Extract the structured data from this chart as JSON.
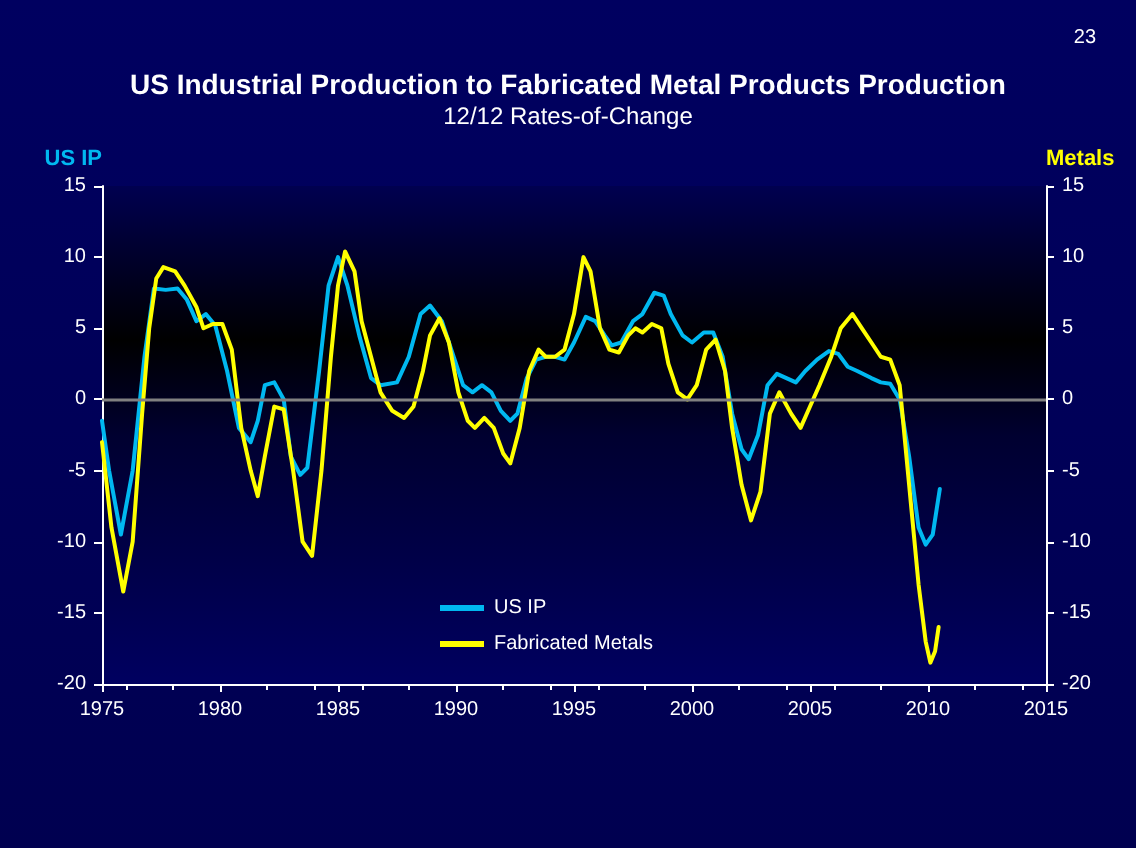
{
  "chart_data": {
    "type": "line",
    "title": "US Industrial Production to Fabricated Metal Products Production",
    "subtitle": "12/12 Rates-of-Change",
    "ylabel": "US IP",
    "y2label": "Metals",
    "annotations": [
      "23"
    ],
    "xlim": [
      1975,
      2015
    ],
    "xticks": [
      1975,
      1980,
      1985,
      1990,
      1995,
      2000,
      2005,
      2010,
      2015
    ],
    "ylim": [
      -20,
      15
    ],
    "yticks": [
      -20,
      -15,
      -10,
      -5,
      0,
      5,
      10,
      15
    ],
    "y2lim": [
      -20,
      15
    ],
    "y2ticks": [
      -20,
      -15,
      -10,
      -5,
      0,
      5,
      10,
      15
    ],
    "grid": false,
    "legend": "bottom",
    "marker": "none",
    "line_style": "solid",
    "ref_lines": [
      {
        "axis": "y",
        "value": 0,
        "color": "#808080"
      }
    ],
    "series": [
      {
        "name": "US IP",
        "color": "#00b8f0",
        "x": [
          1975.0,
          1975.3,
          1975.8,
          1976.3,
          1976.8,
          1977.2,
          1977.7,
          1978.2,
          1978.6,
          1979.0,
          1979.4,
          1979.8,
          1980.3,
          1980.8,
          1981.3,
          1981.6,
          1981.9,
          1982.3,
          1982.7,
          1983.0,
          1983.4,
          1983.7,
          1984.2,
          1984.6,
          1985.0,
          1985.4,
          1985.9,
          1986.4,
          1986.8,
          1987.5,
          1988.0,
          1988.5,
          1988.9,
          1989.4,
          1989.9,
          1990.3,
          1990.7,
          1991.1,
          1991.5,
          1991.9,
          1992.3,
          1992.6,
          1993.0,
          1993.4,
          1993.8,
          1994.2,
          1994.6,
          1995.0,
          1995.5,
          1995.9,
          1996.3,
          1996.6,
          1997.0,
          1997.5,
          1997.9,
          1998.4,
          1998.8,
          1999.1,
          1999.6,
          2000.0,
          2000.5,
          2000.9,
          2001.3,
          2001.7,
          2002.1,
          2002.4,
          2002.8,
          2003.2,
          2003.6,
          2004.0,
          2004.4,
          2004.8,
          2005.3,
          2005.8,
          2006.2,
          2006.6,
          2007.0,
          2007.6,
          2008.0,
          2008.4,
          2008.8,
          2009.2,
          2009.6,
          2009.9,
          2010.2,
          2010.5
        ],
        "values": [
          -1.5,
          -5,
          -9.5,
          -5,
          3,
          7.8,
          7.7,
          7.8,
          7,
          5.5,
          6,
          5.2,
          2,
          -2,
          -3,
          -1.5,
          1,
          1.2,
          0,
          -4,
          -5.3,
          -4.8,
          2,
          8,
          10,
          8,
          4.5,
          1.5,
          1,
          1.2,
          3,
          6,
          6.6,
          5.5,
          3,
          1,
          0.5,
          1,
          0.5,
          -0.8,
          -1.5,
          -1,
          1.5,
          2.8,
          3,
          3,
          2.8,
          4,
          5.8,
          5.5,
          4.5,
          3.8,
          4,
          5.5,
          6,
          7.5,
          7.3,
          6,
          4.5,
          4,
          4.7,
          4.7,
          3,
          -1,
          -3.5,
          -4.2,
          -2.5,
          1,
          1.8,
          1.5,
          1.2,
          2,
          2.8,
          3.4,
          3.2,
          2.3,
          2,
          1.5,
          1.2,
          1.1,
          0,
          -4,
          -9,
          -10.2,
          -9.5,
          -6.3
        ]
      },
      {
        "name": "Fabricated Metals",
        "color": "#ffff00",
        "axis": "y2",
        "x": [
          1975.0,
          1975.4,
          1975.9,
          1976.3,
          1976.7,
          1977.0,
          1977.3,
          1977.6,
          1978.1,
          1978.5,
          1979.0,
          1979.3,
          1979.7,
          1980.1,
          1980.5,
          1980.9,
          1981.3,
          1981.6,
          1981.9,
          1982.3,
          1982.7,
          1983.1,
          1983.5,
          1983.9,
          1984.3,
          1984.7,
          1985.0,
          1985.3,
          1985.7,
          1986.0,
          1986.4,
          1986.8,
          1987.3,
          1987.8,
          1988.2,
          1988.6,
          1988.9,
          1989.3,
          1989.7,
          1990.1,
          1990.5,
          1990.8,
          1991.2,
          1991.6,
          1992.0,
          1992.3,
          1992.7,
          1993.1,
          1993.5,
          1993.8,
          1994.2,
          1994.6,
          1995.0,
          1995.4,
          1995.7,
          1996.1,
          1996.5,
          1996.9,
          1997.3,
          1997.6,
          1997.9,
          1998.3,
          1998.7,
          1999.0,
          1999.4,
          1999.8,
          2000.2,
          2000.6,
          2001.0,
          2001.4,
          2001.7,
          2002.1,
          2002.5,
          2002.9,
          2003.3,
          2003.7,
          2004.2,
          2004.6,
          2005.0,
          2005.4,
          2005.9,
          2006.3,
          2006.8,
          2007.2,
          2007.6,
          2008.0,
          2008.4,
          2008.8,
          2009.2,
          2009.6,
          2009.9,
          2010.1,
          2010.3,
          2010.45
        ],
        "values": [
          -3,
          -9,
          -13.5,
          -10,
          -1,
          5,
          8.5,
          9.3,
          9,
          8,
          6.5,
          5,
          5.3,
          5.3,
          3.5,
          -2,
          -5,
          -6.8,
          -4,
          -0.5,
          -0.7,
          -5,
          -10,
          -11,
          -5,
          3,
          8,
          10.4,
          9,
          5.5,
          3,
          0.5,
          -0.8,
          -1.3,
          -0.5,
          2,
          4.5,
          5.7,
          4,
          0.5,
          -1.5,
          -2,
          -1.3,
          -2,
          -3.8,
          -4.5,
          -2,
          2,
          3.5,
          3,
          3,
          3.5,
          6,
          10,
          9,
          5,
          3.5,
          3.3,
          4.5,
          5,
          4.7,
          5.3,
          5,
          2.5,
          0.5,
          0,
          1,
          3.5,
          4.2,
          2,
          -2,
          -6,
          -8.5,
          -6.5,
          -1,
          0.5,
          -1,
          -2,
          -0.5,
          1,
          3,
          5,
          6,
          5,
          4,
          3,
          2.8,
          1,
          -6,
          -13,
          -17,
          -18.5,
          -17.7,
          -16
        ]
      }
    ]
  }
}
